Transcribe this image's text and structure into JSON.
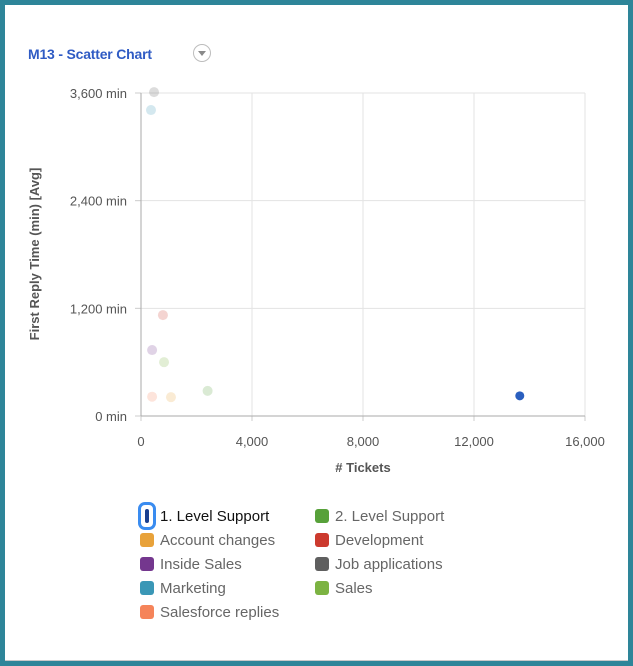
{
  "widget": {
    "title": "M13 - Scatter Chart",
    "menu_icon": "chevron-down-circle-icon"
  },
  "frame": {
    "border_color": "#2e8599",
    "background": "#ffffff"
  },
  "chart_data": {
    "type": "scatter",
    "title": "M13 - Scatter Chart",
    "xlabel": "# Tickets",
    "ylabel": "First Reply Time (min) [Avg]",
    "xlim": [
      0,
      16000
    ],
    "ylim": [
      0,
      3600
    ],
    "x_ticks": [
      "0",
      "4,000",
      "8,000",
      "12,000",
      "16,000"
    ],
    "y_ticks": [
      "0 min",
      "1,200 min",
      "2,400 min",
      "3,600 min"
    ],
    "grid": true,
    "legend_position": "bottom",
    "highlighted_series": "1. Level Support",
    "series": [
      {
        "name": "1. Level Support",
        "color": "#2a5fbf",
        "x": 13650,
        "y": 225,
        "highlighted": true
      },
      {
        "name": "2. Level Support",
        "color": "#57a13a",
        "x": 2400,
        "y": 280
      },
      {
        "name": "Account changes",
        "color": "#e8a23a",
        "x": 1080,
        "y": 210
      },
      {
        "name": "Development",
        "color": "#cc3a2e",
        "x": 790,
        "y": 1125
      },
      {
        "name": "Inside Sales",
        "color": "#74378e",
        "x": 400,
        "y": 735
      },
      {
        "name": "Job applications",
        "color": "#5f5f5f",
        "x": 470,
        "y": 3610
      },
      {
        "name": "Marketing",
        "color": "#3a97b6",
        "x": 360,
        "y": 3410
      },
      {
        "name": "Sales",
        "color": "#7cb342",
        "x": 830,
        "y": 600
      },
      {
        "name": "Salesforce replies",
        "color": "#f5845a",
        "x": 400,
        "y": 215
      }
    ]
  },
  "legend": {
    "items": [
      {
        "label": "1. Level Support",
        "color": "#2a5fbf"
      },
      {
        "label": "2. Level Support",
        "color": "#57a13a"
      },
      {
        "label": "Account changes",
        "color": "#e8a23a"
      },
      {
        "label": "Development",
        "color": "#cc3a2e"
      },
      {
        "label": "Inside Sales",
        "color": "#74378e"
      },
      {
        "label": "Job applications",
        "color": "#5f5f5f"
      },
      {
        "label": "Marketing",
        "color": "#3a97b6"
      },
      {
        "label": "Sales",
        "color": "#7cb342"
      },
      {
        "label": "Salesforce replies",
        "color": "#f5845a"
      }
    ]
  }
}
